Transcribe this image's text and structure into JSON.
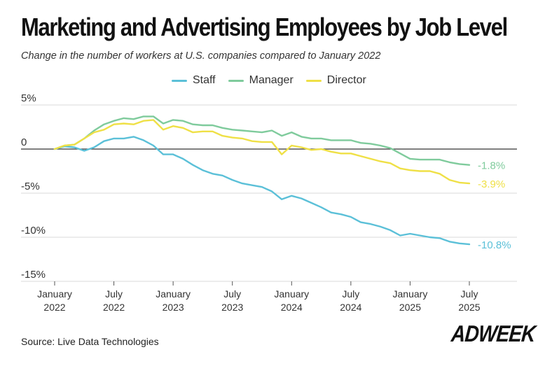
{
  "header": {
    "title": "Marketing and Advertising Employees by Job Level",
    "subtitle": "Change in the number of workers at U.S. companies compared to January 2022"
  },
  "chart_data": {
    "type": "line",
    "title": "Marketing and Advertising Employees by Job Level",
    "subtitle": "Change in the number of workers at U.S. companies compared to January 2022",
    "xlabel": "",
    "ylabel": "",
    "ylim": [
      -15,
      5
    ],
    "grid": "horizontal",
    "legend_position": "top",
    "x_start": "January 2022",
    "x_end": "July 2025",
    "months": 43,
    "y_ticks": [
      {
        "value": 5,
        "label": "5%"
      },
      {
        "value": 0,
        "label": "0"
      },
      {
        "value": -5,
        "label": "-5%"
      },
      {
        "value": -10,
        "label": "-10%"
      },
      {
        "value": -15,
        "label": "-15%"
      }
    ],
    "x_ticks": [
      {
        "index": 0,
        "line1": "January",
        "line2": "2022"
      },
      {
        "index": 6,
        "line1": "July",
        "line2": "2022"
      },
      {
        "index": 12,
        "line1": "January",
        "line2": "2023"
      },
      {
        "index": 18,
        "line1": "July",
        "line2": "2023"
      },
      {
        "index": 24,
        "line1": "January",
        "line2": "2024"
      },
      {
        "index": 30,
        "line1": "July",
        "line2": "2024"
      },
      {
        "index": 36,
        "line1": "January",
        "line2": "2025"
      },
      {
        "index": 42,
        "line1": "July",
        "line2": "2025"
      }
    ],
    "series": [
      {
        "name": "Staff",
        "color": "#5bc0d8",
        "end_label": "-10.8%",
        "values": [
          0,
          0.3,
          0.2,
          -0.2,
          0.2,
          0.9,
          1.2,
          1.2,
          1.4,
          1.0,
          0.4,
          -0.6,
          -0.6,
          -1.1,
          -1.8,
          -2.4,
          -2.8,
          -3.0,
          -3.5,
          -3.9,
          -4.1,
          -4.3,
          -4.8,
          -5.7,
          -5.3,
          -5.6,
          -6.1,
          -6.6,
          -7.2,
          -7.4,
          -7.7,
          -8.3,
          -8.5,
          -8.8,
          -9.2,
          -9.8,
          -9.6,
          -9.8,
          -10.0,
          -10.1,
          -10.5,
          -10.7,
          -10.8
        ]
      },
      {
        "name": "Manager",
        "color": "#7fcb9c",
        "end_label": "-1.8%",
        "values": [
          0,
          0.4,
          0.5,
          1.2,
          2.1,
          2.8,
          3.2,
          3.5,
          3.4,
          3.7,
          3.7,
          2.9,
          3.3,
          3.2,
          2.8,
          2.7,
          2.7,
          2.4,
          2.2,
          2.1,
          2.0,
          1.9,
          2.1,
          1.5,
          1.9,
          1.4,
          1.2,
          1.2,
          1.0,
          1.0,
          1.0,
          0.7,
          0.6,
          0.4,
          0.1,
          -0.5,
          -1.1,
          -1.2,
          -1.2,
          -1.2,
          -1.5,
          -1.7,
          -1.8
        ]
      },
      {
        "name": "Director",
        "color": "#efe046",
        "end_label": "-3.9%",
        "values": [
          0,
          0.4,
          0.5,
          1.2,
          1.9,
          2.2,
          2.8,
          2.9,
          2.8,
          3.2,
          3.3,
          2.2,
          2.6,
          2.4,
          1.9,
          2.0,
          2.0,
          1.5,
          1.3,
          1.2,
          0.9,
          0.8,
          0.8,
          -0.6,
          0.4,
          0.2,
          -0.1,
          0.0,
          -0.3,
          -0.5,
          -0.5,
          -0.8,
          -1.1,
          -1.4,
          -1.6,
          -2.2,
          -2.4,
          -2.5,
          -2.5,
          -2.8,
          -3.5,
          -3.8,
          -3.9
        ]
      }
    ]
  },
  "source": "Source: Live Data Technologies",
  "logo": "ADWEEK"
}
